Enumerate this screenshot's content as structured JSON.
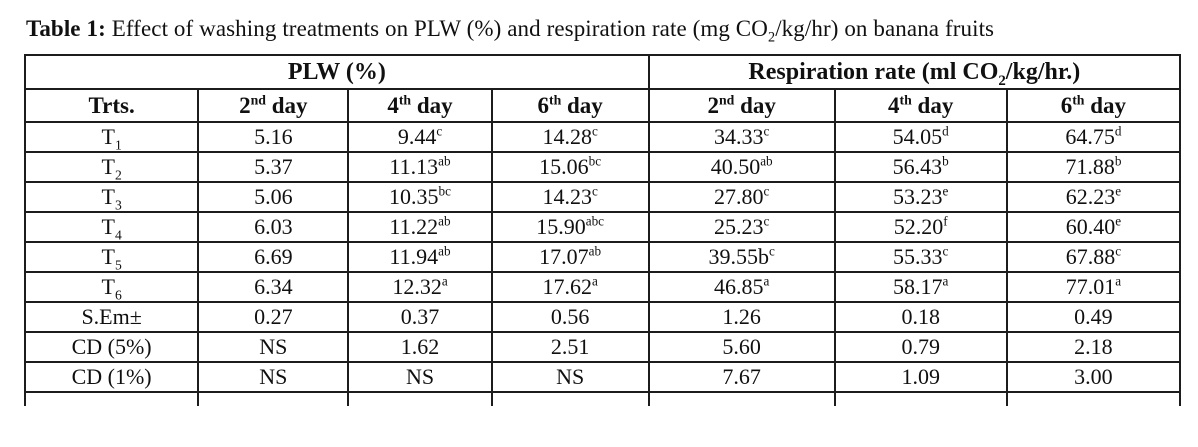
{
  "page": {
    "background": "#ffffff",
    "text_color": "#101010",
    "border_color": "#1c1c1c"
  },
  "caption": {
    "label": "Table 1:",
    "part1": " Effect of washing treatments on PLW (%) and respiration rate (mg CO",
    "sub": "2",
    "part2": "/kg/hr) on banana fruits"
  },
  "table": {
    "group_headers": {
      "plw": "PLW (%)",
      "respiration": {
        "pre": "Respiration rate (ml CO",
        "sub": "2",
        "post": "/kg/hr.)"
      }
    },
    "column_headers": {
      "trts": "Trts.",
      "days": [
        {
          "base": "2",
          "sup": "nd",
          "rest": " day"
        },
        {
          "base": "4",
          "sup": "th",
          "rest": " day"
        },
        {
          "base": "6",
          "sup": "th",
          "rest": " day"
        },
        {
          "base": "2",
          "sup": "nd",
          "rest": " day"
        },
        {
          "base": "4",
          "sup": "th",
          "rest": " day"
        },
        {
          "base": "6",
          "sup": "th",
          "rest": " day"
        }
      ]
    },
    "rows": [
      {
        "label": {
          "base": "T",
          "sub": "1"
        },
        "cells": [
          {
            "v": "5.16",
            "s": ""
          },
          {
            "v": "9.44",
            "s": "c"
          },
          {
            "v": "14.28",
            "s": "c"
          },
          {
            "v": "34.33",
            "s": "c"
          },
          {
            "v": "54.05",
            "s": "d"
          },
          {
            "v": "64.75",
            "s": "d"
          }
        ]
      },
      {
        "label": {
          "base": "T",
          "sub": "2"
        },
        "cells": [
          {
            "v": "5.37",
            "s": ""
          },
          {
            "v": "11.13",
            "s": "ab"
          },
          {
            "v": "15.06",
            "s": "bc"
          },
          {
            "v": "40.50",
            "s": "ab"
          },
          {
            "v": "56.43",
            "s": "b"
          },
          {
            "v": "71.88",
            "s": "b"
          }
        ]
      },
      {
        "label": {
          "base": "T",
          "sub": "3"
        },
        "cells": [
          {
            "v": "5.06",
            "s": ""
          },
          {
            "v": "10.35",
            "s": "bc"
          },
          {
            "v": "14.23",
            "s": "c"
          },
          {
            "v": "27.80",
            "s": "c"
          },
          {
            "v": "53.23",
            "s": "e"
          },
          {
            "v": "62.23",
            "s": "e"
          }
        ]
      },
      {
        "label": {
          "base": "T",
          "sub": "4"
        },
        "cells": [
          {
            "v": "6.03",
            "s": ""
          },
          {
            "v": "11.22",
            "s": "ab"
          },
          {
            "v": "15.90",
            "s": "abc"
          },
          {
            "v": "25.23",
            "s": "c"
          },
          {
            "v": "52.20",
            "s": "f"
          },
          {
            "v": "60.40",
            "s": "e"
          }
        ]
      },
      {
        "label": {
          "base": "T",
          "sub": "5"
        },
        "cells": [
          {
            "v": "6.69",
            "s": ""
          },
          {
            "v": "11.94",
            "s": "ab"
          },
          {
            "v": "17.07",
            "s": "ab"
          },
          {
            "v": "39.55b",
            "s": "c"
          },
          {
            "v": "55.33",
            "s": "c"
          },
          {
            "v": "67.88",
            "s": "c"
          }
        ]
      },
      {
        "label": {
          "base": "T",
          "sub": "6"
        },
        "cells": [
          {
            "v": "6.34",
            "s": ""
          },
          {
            "v": "12.32",
            "s": "a"
          },
          {
            "v": "17.62",
            "s": "a"
          },
          {
            "v": "46.85",
            "s": "a"
          },
          {
            "v": "58.17",
            "s": "a"
          },
          {
            "v": "77.01",
            "s": "a"
          }
        ]
      },
      {
        "label": {
          "base": "S.Em±",
          "sub": ""
        },
        "cells": [
          {
            "v": "0.27",
            "s": ""
          },
          {
            "v": "0.37",
            "s": ""
          },
          {
            "v": "0.56",
            "s": ""
          },
          {
            "v": "1.26",
            "s": ""
          },
          {
            "v": "0.18",
            "s": ""
          },
          {
            "v": "0.49",
            "s": ""
          }
        ]
      },
      {
        "label": {
          "base": "CD (5%)",
          "sub": ""
        },
        "cells": [
          {
            "v": "NS",
            "s": ""
          },
          {
            "v": "1.62",
            "s": ""
          },
          {
            "v": "2.51",
            "s": ""
          },
          {
            "v": "5.60",
            "s": ""
          },
          {
            "v": "0.79",
            "s": ""
          },
          {
            "v": "2.18",
            "s": ""
          }
        ]
      },
      {
        "label": {
          "base": "CD (1%)",
          "sub": ""
        },
        "cells": [
          {
            "v": "NS",
            "s": ""
          },
          {
            "v": "NS",
            "s": ""
          },
          {
            "v": "NS",
            "s": ""
          },
          {
            "v": "7.67",
            "s": ""
          },
          {
            "v": "1.09",
            "s": ""
          },
          {
            "v": "3.00",
            "s": ""
          }
        ]
      }
    ]
  }
}
